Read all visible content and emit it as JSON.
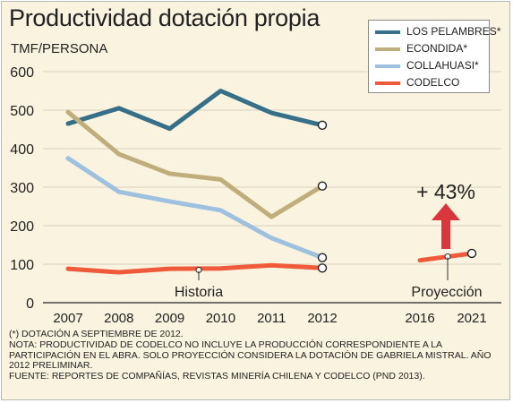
{
  "header": {
    "title": "Productividad dotación propia",
    "unit": "TMF/PERSONA"
  },
  "chart_data": {
    "type": "line",
    "x": [
      2007,
      2008,
      2009,
      2010,
      2011,
      2012
    ],
    "x_projection": [
      2016,
      2021
    ],
    "x_tick_labels": [
      "2007",
      "2008",
      "2009",
      "2010",
      "2011",
      "2012",
      "2016",
      "2021"
    ],
    "ylim": [
      0,
      600
    ],
    "y_ticks": [
      0,
      100,
      200,
      300,
      400,
      500,
      600
    ],
    "grid": true,
    "legend_position": "top-right",
    "series": [
      {
        "name": "LOS PELAMBRES*",
        "color": "#356f88",
        "values": [
          465,
          505,
          452,
          550,
          493,
          461
        ]
      },
      {
        "name": "ECONDIDA*",
        "color": "#bfad7b",
        "values": [
          495,
          386,
          335,
          320,
          223,
          303
        ]
      },
      {
        "name": "COLLAHUASI*",
        "color": "#9dc1df",
        "values": [
          375,
          288,
          263,
          240,
          168,
          117
        ]
      },
      {
        "name": "CODELCO",
        "color": "#ee5a3a",
        "values": [
          88,
          79,
          88,
          89,
          97,
          90
        ],
        "projection": [
          110,
          128
        ]
      }
    ],
    "annotations": {
      "history_label": "Historia",
      "projection_label": "Proyección",
      "growth_label": "+ 43%"
    },
    "colors": {
      "arrow": "#d9363e",
      "background": "#faf3df",
      "gridline": "#d9d1bd"
    }
  },
  "notes": [
    "(*) DOTACIÓN A SEPTIEMBRE DE 2012.",
    "NOTA: PRODUCTIVIDAD DE CODELCO NO INCLUYE LA PRODUCCIÓN CORRESPONDIENTE A LA PARTICIPACIÓN EN EL ABRA. SOLO PROYECCIÓN CONSIDERA LA DOTACIÓN DE GABRIELA MISTRAL. AÑO 2012 PRELIMINAR.",
    "FUENTE: REPORTES DE COMPAÑÍAS, REVISTAS MINERÍA CHILENA Y CODELCO (PND 2013)."
  ]
}
